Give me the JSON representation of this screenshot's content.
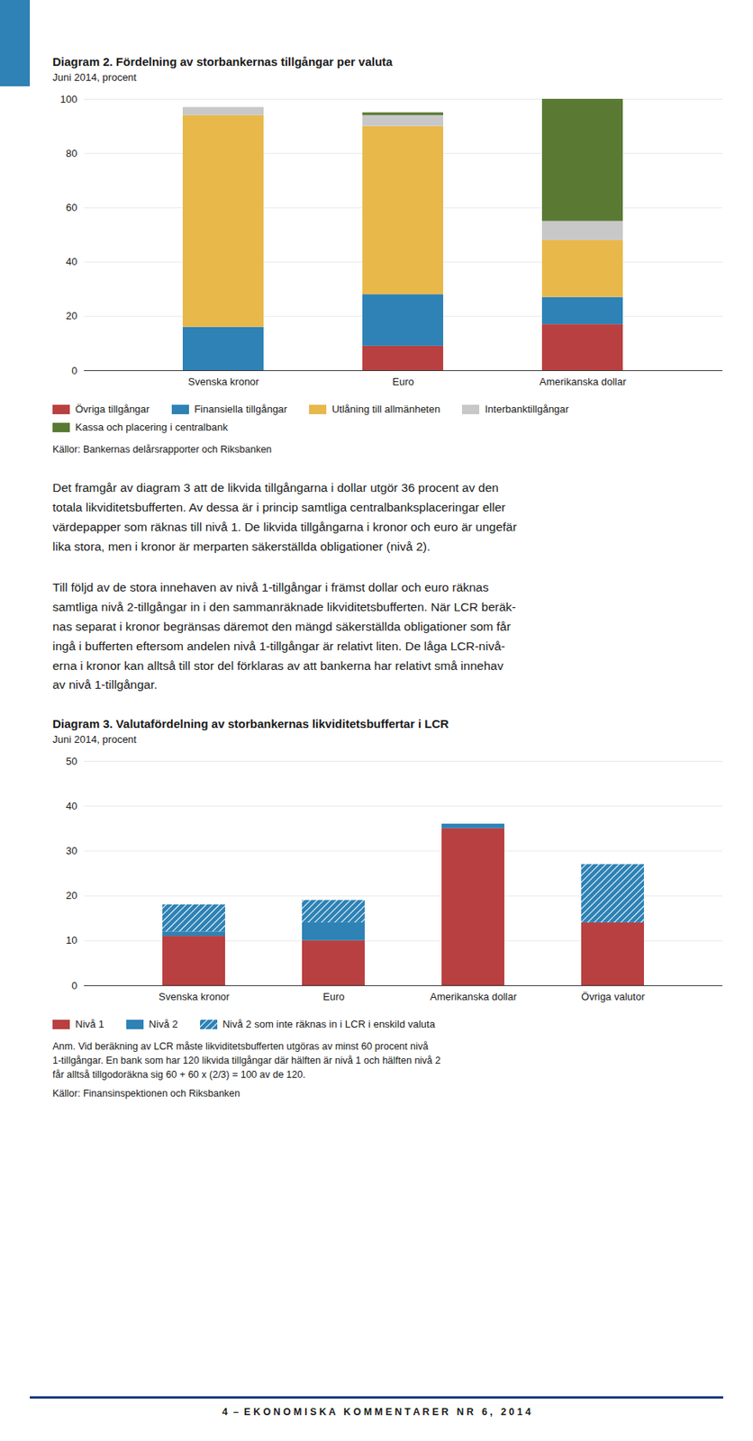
{
  "chart_data": [
    {
      "type": "bar",
      "stacked": true,
      "grid": true,
      "title": "Diagram 2. Fördelning av storbankernas tillgångar per valuta",
      "subtitle": "Juni 2014, procent",
      "categories": [
        "Svenska kronor",
        "Euro",
        "Amerikanska dollar"
      ],
      "series": [
        {
          "name": "Övriga tillgångar",
          "color": "#b94040",
          "values": [
            0,
            9,
            17
          ]
        },
        {
          "name": "Finansiella tillgångar",
          "color": "#2e82b5",
          "values": [
            16,
            19,
            10
          ]
        },
        {
          "name": "Utlåning till allmänheten",
          "color": "#e8b84b",
          "values": [
            78,
            62,
            21
          ]
        },
        {
          "name": "Interbanktillgångar",
          "color": "#c8c8c8",
          "values": [
            3,
            4,
            7
          ]
        },
        {
          "name": "Kassa och placering i centralbank",
          "color": "#5a7a34",
          "values": [
            0,
            1,
            45
          ]
        }
      ],
      "ylim": [
        0,
        100
      ],
      "yticks": [
        0,
        20,
        40,
        60,
        80,
        100
      ],
      "annotations": [
        "Källor: Bankernas delårsrapporter och Riksbanken",
        "Det framgår av diagram 3 att de likvida tillgångarna i dollar utgör 36 procent av den\ntotala likviditetsbufferten. Av dessa är i princip samtliga centralbanksplaceringar eller\nvärdepapper som räknas till nivå 1. De likvida tillgångarna i kronor och euro är ungefär\nlika stora, men i kronor är merparten säkerställda obligationer (nivå 2).",
        "Till följd av de stora innehaven av nivå 1-tillgångar i främst dollar och euro räknas\nsamtliga nivå 2-tillgångar in i den sammanräknade likviditetsbufferten. När LCR beräk-\nnas separat i kronor begränsas däremot den mängd säkerställda obligationer som får\ningå i bufferten eftersom andelen nivå 1-tillgångar är relativt liten. De låga LCR-nivå-\nerna i kronor kan alltså till stor del förklaras av att bankerna har relativt små innehav\nav nivå 1-tillgångar."
      ]
    },
    {
      "type": "bar",
      "stacked": true,
      "grid": true,
      "title": "Diagram 3. Valutafördelning av storbankernas likviditetsbuffertar i LCR",
      "subtitle": "Juni 2014, procent",
      "categories": [
        "Svenska kronor",
        "Euro",
        "Amerikanska dollar",
        "Övriga valutor"
      ],
      "series": [
        {
          "name": "Nivå 1",
          "color": "#b94040",
          "values": [
            11,
            10,
            35,
            14
          ]
        },
        {
          "name": "Nivå 2",
          "color": "#2e82b5",
          "values": [
            1,
            4,
            1,
            0
          ]
        },
        {
          "name": "Nivå 2 som inte räknas in i LCR i enskild valuta",
          "color": "#2e82b5",
          "values": [
            6,
            5,
            0,
            13
          ]
        }
      ],
      "ylim": [
        0,
        50
      ],
      "yticks": [
        0,
        10,
        20,
        30,
        40,
        50
      ],
      "annotations": [
        "Anm. Vid beräkning av LCR måste likviditetsbufferten utgöras av minst 60 procent nivå\n1-tillgångar. En bank som har 120 likvida tillgångar där hälften är nivå 1 och hälften nivå 2\nfår alltså tillgodoräkna sig 60 + 60 x (2/3) = 100 av de 120.",
        "Källor: Finansinspektionen och Riksbanken"
      ]
    }
  ],
  "footer": "4  –  E K O N O M I S K A   K O M M E N T A R E R   N R   6 ,   2 0 1 4"
}
